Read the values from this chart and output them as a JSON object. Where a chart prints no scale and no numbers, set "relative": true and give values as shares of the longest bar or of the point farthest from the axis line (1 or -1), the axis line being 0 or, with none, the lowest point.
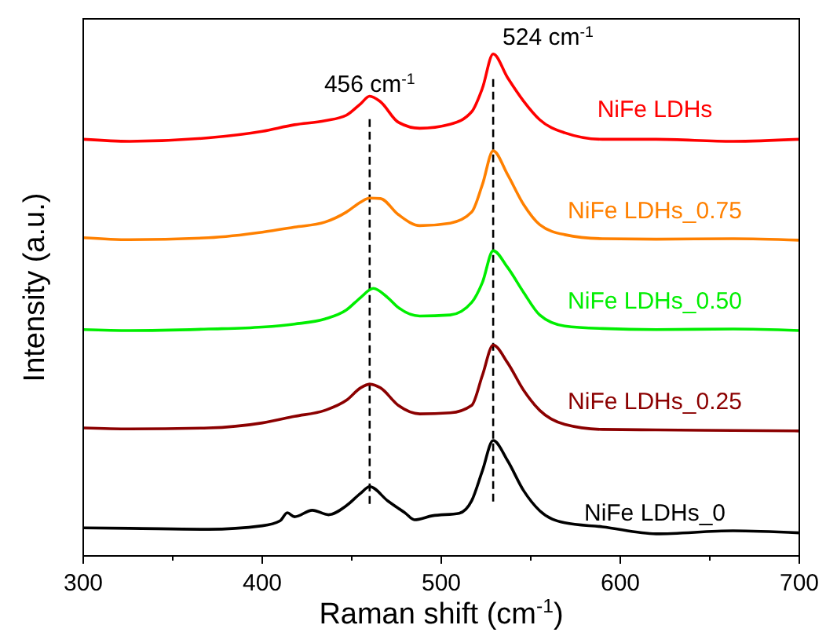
{
  "chart_data": {
    "type": "line",
    "relative": true,
    "xlabel": "Raman shift (cm$^{-1}$)",
    "ylabel": "Intensity (a.u.)",
    "xlim": [
      300,
      700
    ],
    "xticks": [
      300,
      {
        "value": 350,
        "label": null
      },
      400,
      {
        "value": 450,
        "label": null
      },
      500,
      {
        "value": 550,
        "label": null
      },
      600,
      {
        "value": 650,
        "label": null
      },
      700
    ],
    "grid": false,
    "marker": "none",
    "line_style": "solid",
    "series": [
      {
        "name": "NiFe LDHs",
        "color": "#ff0000",
        "x": [
          300,
          326,
          370,
          400,
          418,
          435,
          447,
          455,
          460,
          466,
          476,
          488,
          505,
          517,
          523,
          529,
          537,
          546,
          555,
          569,
          590,
          620,
          663,
          700
        ],
        "values": [
          0.83,
          0.826,
          0.833,
          0.846,
          0.859,
          0.867,
          0.878,
          0.901,
          0.916,
          0.905,
          0.864,
          0.852,
          0.86,
          0.885,
          0.932,
          1.0,
          0.953,
          0.906,
          0.869,
          0.843,
          0.83,
          0.83,
          0.826,
          0.83
        ]
      },
      {
        "name": "NiFe LDHs_0.75",
        "color": "#ff8000",
        "x": [
          300,
          326,
          370,
          400,
          418,
          435,
          447,
          455,
          460,
          466,
          476,
          488,
          505,
          517,
          523,
          529,
          537,
          546,
          555,
          569,
          590,
          620,
          663,
          700
        ],
        "values": [
          0.634,
          0.63,
          0.634,
          0.645,
          0.655,
          0.665,
          0.685,
          0.705,
          0.713,
          0.712,
          0.68,
          0.658,
          0.663,
          0.685,
          0.74,
          0.807,
          0.76,
          0.7,
          0.66,
          0.64,
          0.632,
          0.631,
          0.632,
          0.629
        ]
      },
      {
        "name": "NiFe LDHs_0.50",
        "color": "#00ee00",
        "x": [
          300,
          326,
          370,
          400,
          418,
          435,
          447,
          455,
          462,
          470,
          476,
          488,
          505,
          517,
          523,
          529,
          537,
          546,
          555,
          569,
          590,
          620,
          663,
          700
        ],
        "values": [
          0.451,
          0.449,
          0.452,
          0.456,
          0.462,
          0.472,
          0.49,
          0.515,
          0.533,
          0.515,
          0.495,
          0.478,
          0.48,
          0.505,
          0.545,
          0.608,
          0.575,
          0.525,
          0.48,
          0.458,
          0.453,
          0.451,
          0.452,
          0.449
        ]
      },
      {
        "name": "NiFe LDHs_0.25",
        "color": "#8b0000",
        "x": [
          300,
          326,
          370,
          400,
          418,
          435,
          447,
          455,
          460,
          466,
          476,
          488,
          505,
          517,
          523,
          529,
          537,
          546,
          555,
          569,
          590,
          620,
          663,
          700
        ],
        "values": [
          0.255,
          0.253,
          0.255,
          0.265,
          0.278,
          0.29,
          0.31,
          0.335,
          0.342,
          0.335,
          0.3,
          0.283,
          0.285,
          0.3,
          0.36,
          0.42,
          0.385,
          0.33,
          0.29,
          0.262,
          0.252,
          0.251,
          0.25,
          0.249
        ]
      },
      {
        "name": "NiFe LDHs_0",
        "color": "#000000",
        "x": [
          300,
          326,
          370,
          400,
          410,
          414,
          418,
          428,
          437,
          447,
          455,
          460,
          470,
          480,
          485,
          495,
          510,
          517,
          523,
          529,
          537,
          546,
          555,
          569,
          590,
          620,
          663,
          700
        ],
        "values": [
          0.056,
          0.055,
          0.053,
          0.06,
          0.07,
          0.086,
          0.078,
          0.091,
          0.082,
          0.1,
          0.125,
          0.138,
          0.11,
          0.085,
          0.072,
          0.08,
          0.085,
          0.11,
          0.17,
          0.23,
          0.19,
          0.13,
          0.09,
          0.066,
          0.058,
          0.044,
          0.05,
          0.046
        ]
      }
    ],
    "ref_lines": [
      {
        "axis": "x",
        "value": 460,
        "label": "456 cm$^{-1}$",
        "color": "#000000",
        "line_style": "dashed"
      },
      {
        "axis": "x",
        "value": 529,
        "label": "524 cm$^{-1}$",
        "color": "#000000",
        "line_style": "dashed"
      }
    ]
  }
}
